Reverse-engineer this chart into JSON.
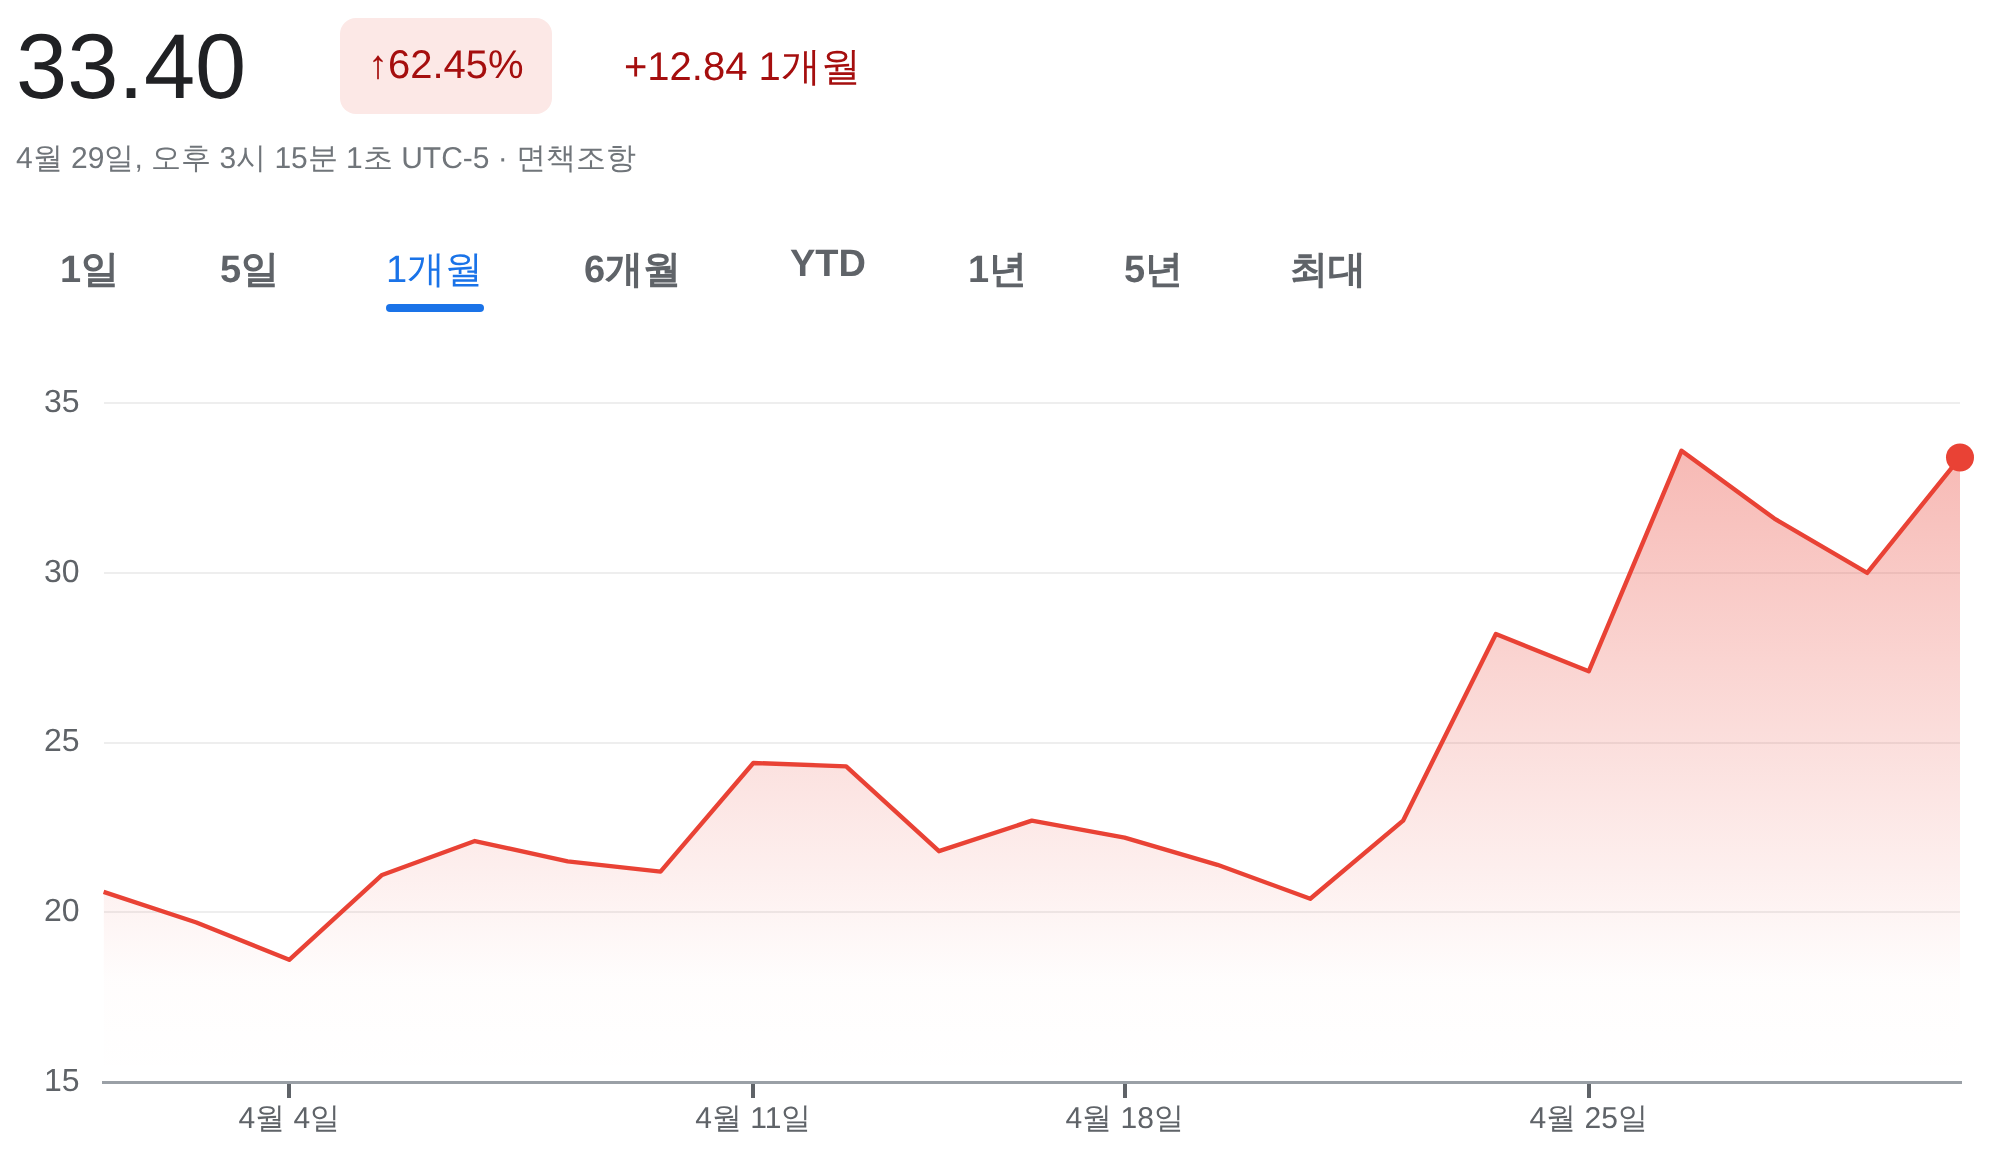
{
  "chart_data": {
    "type": "area",
    "title": "33.40",
    "subtitle": "4월 29일, 오후 3시 15분 1초 UTC-5 · 면책조항",
    "annotations": [
      "↑62.45%",
      "+12.84 1개월",
      "1일",
      "5일",
      "1개월",
      "6개월",
      "YTD",
      "1년",
      "5년",
      "최대"
    ],
    "categories": [
      null,
      null,
      "4월 4일",
      null,
      null,
      null,
      null,
      "4월 11일",
      null,
      null,
      null,
      "4월 18일",
      null,
      null,
      null,
      null,
      "4월 25일",
      null,
      null,
      null,
      null
    ],
    "series": [
      {
        "color": "#e94235",
        "values": [
          20.6,
          19.7,
          18.6,
          21.1,
          22.1,
          21.5,
          21.2,
          24.4,
          24.3,
          21.8,
          22.7,
          22.2,
          21.4,
          20.4,
          22.7,
          28.2,
          27.1,
          33.6,
          31.6,
          30.0,
          33.4
        ]
      }
    ],
    "ylim": [
      15,
      35
    ],
    "yticks": [
      15,
      20,
      25,
      30,
      35
    ],
    "grid": "y",
    "legend": false
  }
}
